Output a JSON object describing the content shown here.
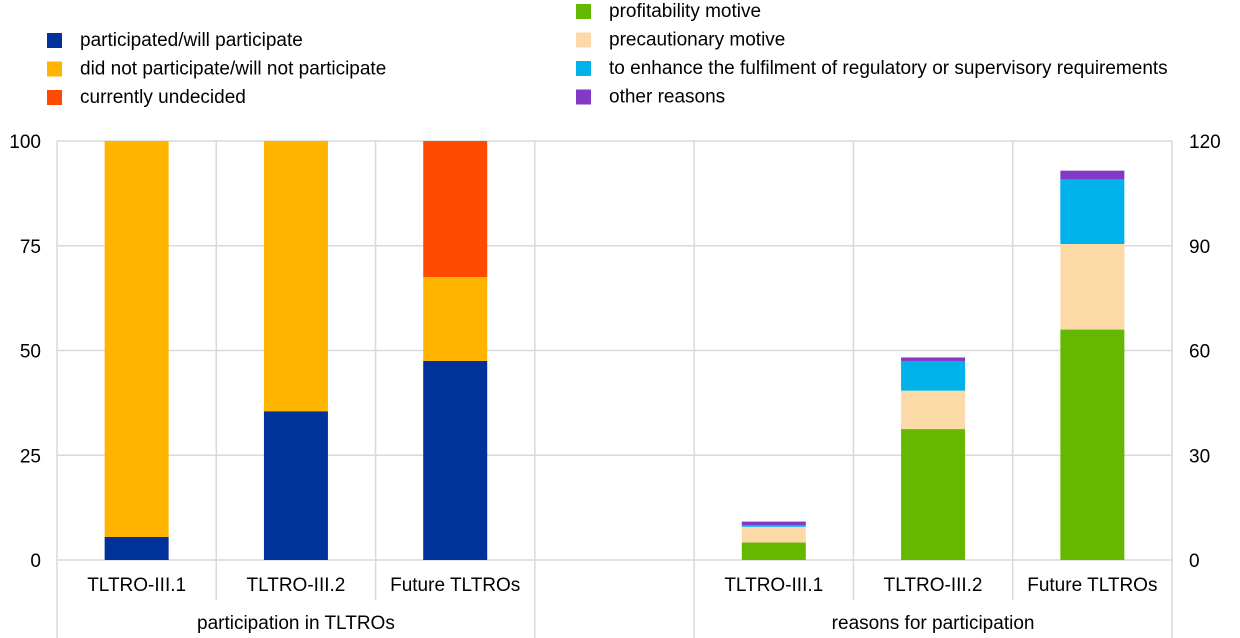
{
  "chart_data": {
    "type": "bar",
    "stacked": true,
    "grid": true,
    "legend_placement": "top",
    "left_axis": {
      "ylim": [
        0,
        100
      ],
      "ticks": [
        "0",
        "25",
        "50",
        "75",
        "100"
      ]
    },
    "right_axis": {
      "ylim": [
        0,
        120
      ],
      "ticks": [
        "0",
        "30",
        "60",
        "90",
        "120"
      ]
    },
    "groups": [
      {
        "label": "participation in TLTROs",
        "axis": "left",
        "categories": [
          "TLTRO-III.1",
          "TLTRO-III.2",
          "Future TLTROs"
        ]
      },
      {
        "label": "",
        "axis": "none",
        "categories": [
          ""
        ]
      },
      {
        "label": "reasons for participation",
        "axis": "right",
        "categories": [
          "TLTRO-III.1",
          "TLTRO-III.2",
          "Future TLTROs"
        ]
      }
    ],
    "series": [
      {
        "name": "participated/will participate",
        "color": "#003299",
        "axis": "left",
        "group": 0,
        "values": [
          5.5,
          35.5,
          47.5
        ]
      },
      {
        "name": "did not participate/will not participate",
        "color": "#FFB400",
        "axis": "left",
        "group": 0,
        "values": [
          94.5,
          64.5,
          20
        ]
      },
      {
        "name": "currently undecided",
        "color": "#FF4B00",
        "axis": "left",
        "group": 0,
        "values": [
          0,
          0,
          32.5
        ]
      },
      {
        "name": "profitability motive",
        "color": "#65B800",
        "axis": "right",
        "group": 2,
        "values": [
          5,
          37.5,
          66
        ]
      },
      {
        "name": "precautionary motive",
        "color": "#FBDAA7",
        "axis": "right",
        "group": 2,
        "values": [
          4.5,
          11,
          24.5
        ]
      },
      {
        "name": "to enhance the fulfilment of regulatory or supervisory requirements",
        "color": "#00B1EA",
        "axis": "right",
        "group": 2,
        "values": [
          0.5,
          8.5,
          18.5
        ]
      },
      {
        "name": "other reasons",
        "color": "#8139C6",
        "axis": "right",
        "group": 2,
        "values": [
          1,
          1,
          2.5
        ]
      }
    ]
  }
}
